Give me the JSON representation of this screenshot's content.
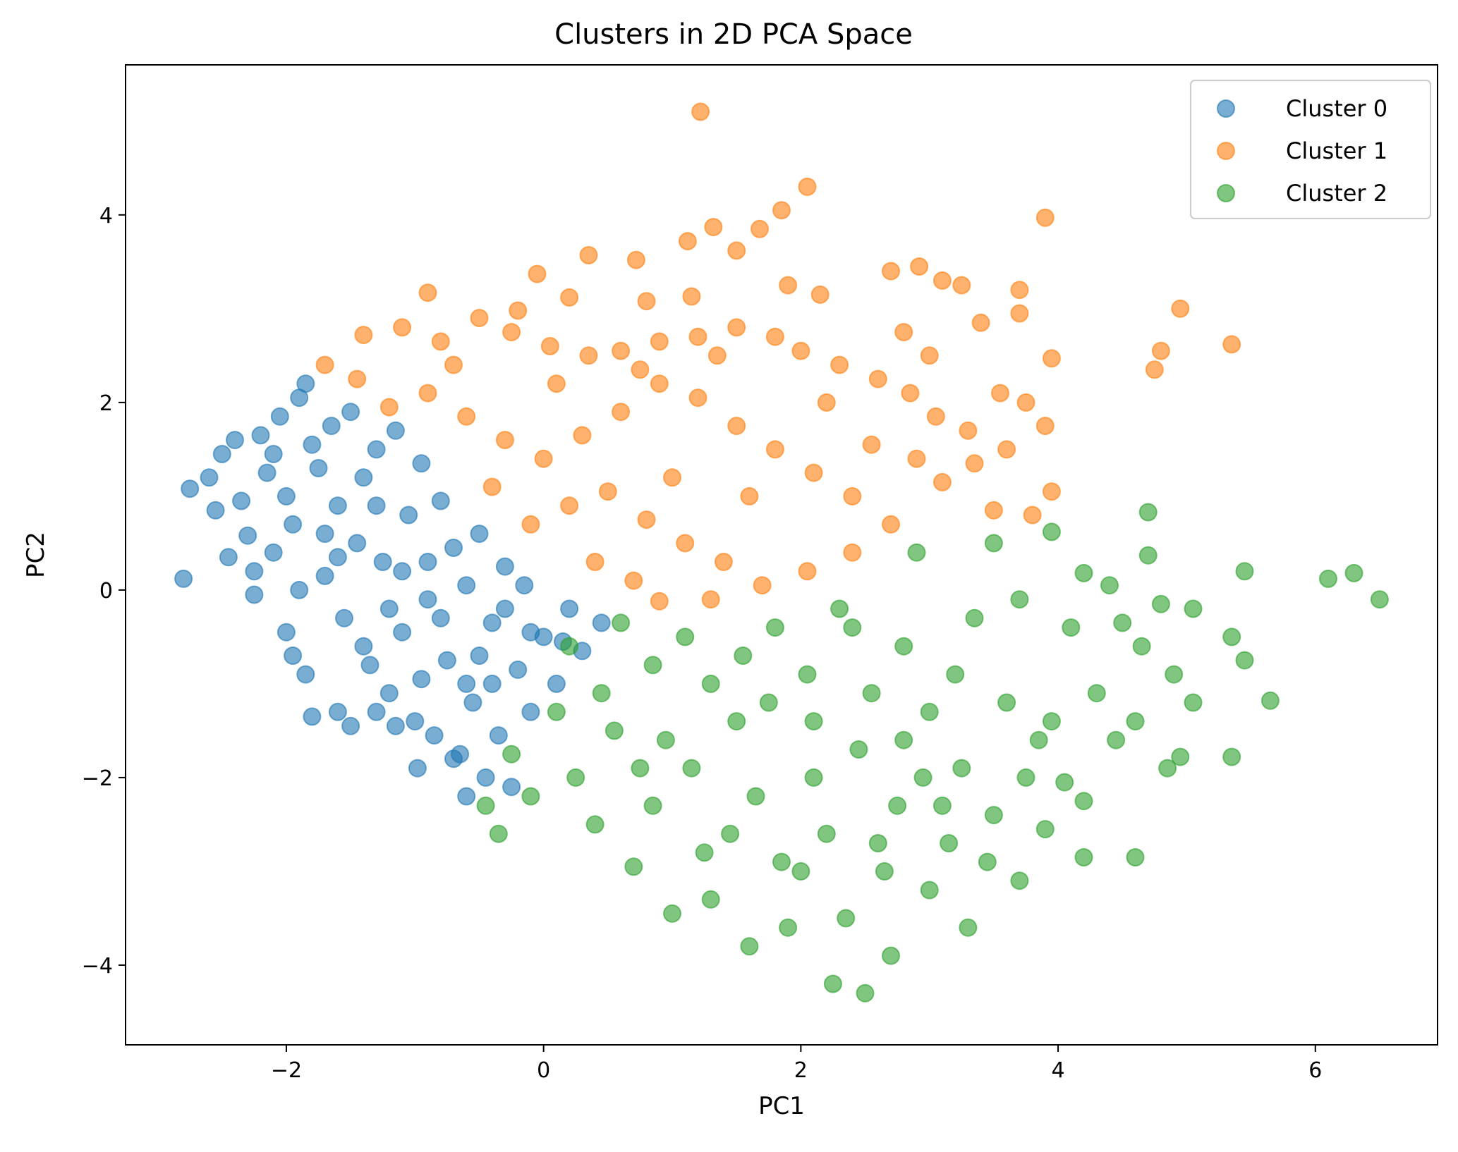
{
  "chart_data": {
    "type": "scatter",
    "title": "Clusters in 2D PCA Space",
    "xlabel": "PC1",
    "ylabel": "PC2",
    "xlim": [
      -3.25,
      6.95
    ],
    "ylim": [
      -4.85,
      5.6
    ],
    "xticks": [
      -2,
      0,
      2,
      4,
      6
    ],
    "yticks": [
      -4,
      -2,
      0,
      2,
      4
    ],
    "xtick_labels": [
      "−2",
      "0",
      "2",
      "4",
      "6"
    ],
    "ytick_labels": [
      "−4",
      "−2",
      "0",
      "2",
      "4"
    ],
    "grid": false,
    "legend_position": "top-right",
    "marker_alpha": 0.6,
    "series": [
      {
        "name": "Cluster 0",
        "color": "#1f77b4",
        "points": [
          [
            -2.8,
            0.12
          ],
          [
            -2.75,
            1.08
          ],
          [
            -2.6,
            1.2
          ],
          [
            -2.55,
            0.85
          ],
          [
            -2.5,
            1.45
          ],
          [
            -2.45,
            0.35
          ],
          [
            -2.4,
            1.6
          ],
          [
            -2.35,
            0.95
          ],
          [
            -2.3,
            0.58
          ],
          [
            -2.25,
            0.2
          ],
          [
            -2.2,
            1.65
          ],
          [
            -2.15,
            1.25
          ],
          [
            -2.1,
            0.4
          ],
          [
            -2.05,
            1.85
          ],
          [
            -2.0,
            1.0
          ],
          [
            -1.95,
            0.7
          ],
          [
            -1.9,
            2.05
          ],
          [
            -1.85,
            2.2
          ],
          [
            -1.8,
            1.55
          ],
          [
            -1.75,
            1.3
          ],
          [
            -1.7,
            0.15
          ],
          [
            -1.65,
            1.75
          ],
          [
            -1.6,
            0.9
          ],
          [
            -1.55,
            -0.3
          ],
          [
            -1.5,
            1.9
          ],
          [
            -1.45,
            0.5
          ],
          [
            -1.4,
            1.2
          ],
          [
            -1.35,
            -0.8
          ],
          [
            -1.3,
            1.5
          ],
          [
            -1.25,
            0.3
          ],
          [
            -1.2,
            -1.1
          ],
          [
            -1.15,
            1.7
          ],
          [
            -1.1,
            -0.45
          ],
          [
            -1.05,
            0.8
          ],
          [
            -1.0,
            -1.4
          ],
          [
            -0.95,
            1.35
          ],
          [
            -0.9,
            -0.1
          ],
          [
            -0.85,
            -1.55
          ],
          [
            -0.8,
            0.95
          ],
          [
            -0.75,
            -0.75
          ],
          [
            -0.7,
            0.45
          ],
          [
            -0.65,
            -1.75
          ],
          [
            -0.6,
            0.05
          ],
          [
            -0.55,
            -1.2
          ],
          [
            -0.5,
            0.6
          ],
          [
            -0.45,
            -2.0
          ],
          [
            -0.4,
            -0.35
          ],
          [
            -0.35,
            -1.55
          ],
          [
            -0.3,
            0.25
          ],
          [
            -0.25,
            -2.1
          ],
          [
            -0.2,
            -0.85
          ],
          [
            -0.15,
            0.05
          ],
          [
            -0.1,
            -1.3
          ],
          [
            0.0,
            -0.5
          ],
          [
            0.1,
            -1.0
          ],
          [
            0.2,
            -0.2
          ],
          [
            0.3,
            -0.65
          ],
          [
            0.45,
            -0.35
          ],
          [
            -1.85,
            -0.9
          ],
          [
            -1.8,
            -1.35
          ],
          [
            -1.6,
            -1.3
          ],
          [
            -1.5,
            -1.45
          ],
          [
            -1.3,
            -1.3
          ],
          [
            -1.15,
            -1.45
          ],
          [
            -0.98,
            -1.9
          ],
          [
            -0.7,
            -1.8
          ],
          [
            -0.6,
            -2.2
          ],
          [
            -2.25,
            -0.05
          ],
          [
            -2.0,
            -0.45
          ],
          [
            -1.95,
            -0.7
          ],
          [
            -1.9,
            0.0
          ],
          [
            -2.1,
            1.45
          ],
          [
            -1.7,
            0.6
          ],
          [
            -1.3,
            0.9
          ],
          [
            -0.9,
            0.3
          ],
          [
            -0.5,
            -0.7
          ],
          [
            -0.3,
            -0.2
          ],
          [
            -1.4,
            -0.6
          ],
          [
            -1.1,
            0.2
          ],
          [
            -0.8,
            -0.3
          ],
          [
            -0.6,
            -1.0
          ],
          [
            -1.6,
            0.35
          ],
          [
            -1.2,
            -0.2
          ],
          [
            -0.95,
            -0.95
          ],
          [
            -0.4,
            -1.0
          ],
          [
            -0.1,
            -0.45
          ],
          [
            0.15,
            -0.55
          ]
        ]
      },
      {
        "name": "Cluster 1",
        "color": "#ff7f0e",
        "points": [
          [
            1.22,
            5.1
          ],
          [
            2.05,
            4.3
          ],
          [
            1.85,
            4.05
          ],
          [
            1.32,
            3.87
          ],
          [
            1.68,
            3.85
          ],
          [
            1.12,
            3.72
          ],
          [
            1.5,
            3.62
          ],
          [
            0.35,
            3.57
          ],
          [
            0.72,
            3.52
          ],
          [
            2.7,
            3.4
          ],
          [
            -0.05,
            3.37
          ],
          [
            2.92,
            3.45
          ],
          [
            3.1,
            3.3
          ],
          [
            3.25,
            3.25
          ],
          [
            1.9,
            3.25
          ],
          [
            2.15,
            3.15
          ],
          [
            -0.9,
            3.17
          ],
          [
            0.2,
            3.12
          ],
          [
            3.9,
            3.97
          ],
          [
            0.8,
            3.08
          ],
          [
            1.15,
            3.13
          ],
          [
            -0.2,
            2.98
          ],
          [
            4.95,
            3.0
          ],
          [
            5.35,
            2.62
          ],
          [
            4.8,
            2.55
          ],
          [
            4.75,
            2.35
          ],
          [
            3.95,
            2.47
          ],
          [
            3.7,
            3.2
          ],
          [
            3.7,
            2.95
          ],
          [
            3.4,
            2.85
          ],
          [
            -1.7,
            2.4
          ],
          [
            -1.4,
            2.72
          ],
          [
            -1.1,
            2.8
          ],
          [
            -0.8,
            2.65
          ],
          [
            -0.5,
            2.9
          ],
          [
            -0.25,
            2.75
          ],
          [
            0.05,
            2.6
          ],
          [
            0.35,
            2.5
          ],
          [
            0.6,
            2.55
          ],
          [
            0.9,
            2.65
          ],
          [
            1.2,
            2.7
          ],
          [
            1.5,
            2.8
          ],
          [
            1.8,
            2.7
          ],
          [
            2.0,
            2.55
          ],
          [
            2.3,
            2.4
          ],
          [
            2.6,
            2.25
          ],
          [
            2.85,
            2.1
          ],
          [
            3.05,
            1.85
          ],
          [
            3.3,
            1.7
          ],
          [
            3.55,
            2.1
          ],
          [
            3.75,
            2.0
          ],
          [
            3.9,
            1.75
          ],
          [
            3.6,
            1.5
          ],
          [
            3.35,
            1.35
          ],
          [
            3.1,
            1.15
          ],
          [
            3.5,
            0.85
          ],
          [
            3.8,
            0.8
          ],
          [
            3.95,
            1.05
          ],
          [
            2.7,
            0.7
          ],
          [
            2.4,
            0.4
          ],
          [
            2.05,
            0.2
          ],
          [
            1.7,
            0.05
          ],
          [
            1.3,
            -0.1
          ],
          [
            0.9,
            -0.12
          ],
          [
            -1.2,
            1.95
          ],
          [
            -0.9,
            2.1
          ],
          [
            -0.6,
            1.85
          ],
          [
            -0.3,
            1.6
          ],
          [
            0.0,
            1.4
          ],
          [
            0.3,
            1.65
          ],
          [
            0.6,
            1.9
          ],
          [
            0.9,
            2.2
          ],
          [
            1.2,
            2.05
          ],
          [
            1.5,
            1.75
          ],
          [
            1.8,
            1.5
          ],
          [
            2.1,
            1.25
          ],
          [
            2.4,
            1.0
          ],
          [
            0.2,
            0.9
          ],
          [
            0.5,
            1.05
          ],
          [
            0.8,
            0.75
          ],
          [
            1.1,
            0.5
          ],
          [
            1.4,
            0.3
          ],
          [
            -0.4,
            1.1
          ],
          [
            -0.1,
            0.7
          ],
          [
            0.4,
            0.3
          ],
          [
            0.7,
            0.1
          ],
          [
            1.0,
            1.2
          ],
          [
            1.6,
            1.0
          ],
          [
            2.2,
            2.0
          ],
          [
            2.55,
            1.55
          ],
          [
            2.9,
            1.4
          ],
          [
            -1.45,
            2.25
          ],
          [
            -0.7,
            2.4
          ],
          [
            0.1,
            2.2
          ],
          [
            0.75,
            2.35
          ],
          [
            1.35,
            2.5
          ],
          [
            2.8,
            2.75
          ],
          [
            3.0,
            2.5
          ]
        ]
      },
      {
        "name": "Cluster 2",
        "color": "#2ca02c",
        "points": [
          [
            6.5,
            -0.1
          ],
          [
            6.3,
            0.18
          ],
          [
            6.1,
            0.12
          ],
          [
            5.65,
            -1.18
          ],
          [
            5.45,
            0.2
          ],
          [
            5.45,
            -0.75
          ],
          [
            5.35,
            -1.78
          ],
          [
            5.35,
            -0.5
          ],
          [
            5.05,
            -0.2
          ],
          [
            5.05,
            -1.2
          ],
          [
            4.95,
            -1.78
          ],
          [
            4.9,
            -0.9
          ],
          [
            4.85,
            -1.9
          ],
          [
            4.8,
            -0.15
          ],
          [
            4.7,
            0.83
          ],
          [
            4.7,
            0.37
          ],
          [
            4.65,
            -0.6
          ],
          [
            4.6,
            -1.4
          ],
          [
            4.6,
            -2.85
          ],
          [
            4.5,
            -0.35
          ],
          [
            4.45,
            -1.6
          ],
          [
            4.4,
            0.05
          ],
          [
            4.3,
            -1.1
          ],
          [
            4.2,
            0.18
          ],
          [
            4.2,
            -2.25
          ],
          [
            4.2,
            -2.85
          ],
          [
            4.1,
            -0.4
          ],
          [
            4.05,
            -2.05
          ],
          [
            3.95,
            0.62
          ],
          [
            3.95,
            -1.4
          ],
          [
            3.9,
            -2.55
          ],
          [
            3.7,
            -0.1
          ],
          [
            3.6,
            -1.2
          ],
          [
            3.5,
            0.5
          ],
          [
            3.45,
            -2.9
          ],
          [
            3.3,
            -3.6
          ],
          [
            3.2,
            -0.9
          ],
          [
            3.1,
            -2.3
          ],
          [
            3.0,
            -3.2
          ],
          [
            2.9,
            0.4
          ],
          [
            2.8,
            -1.6
          ],
          [
            2.7,
            -3.9
          ],
          [
            2.6,
            -2.7
          ],
          [
            2.5,
            -4.3
          ],
          [
            2.4,
            -0.4
          ],
          [
            2.35,
            -3.5
          ],
          [
            2.25,
            -4.2
          ],
          [
            2.1,
            -2.0
          ],
          [
            2.0,
            -3.0
          ],
          [
            1.9,
            -3.6
          ],
          [
            1.75,
            -1.2
          ],
          [
            1.6,
            -3.8
          ],
          [
            1.45,
            -2.6
          ],
          [
            1.3,
            -3.3
          ],
          [
            1.15,
            -1.9
          ],
          [
            1.0,
            -3.45
          ],
          [
            0.85,
            -2.3
          ],
          [
            0.7,
            -2.95
          ],
          [
            0.55,
            -1.5
          ],
          [
            0.4,
            -2.5
          ],
          [
            0.25,
            -2.0
          ],
          [
            0.1,
            -1.3
          ],
          [
            -0.1,
            -2.2
          ],
          [
            -0.25,
            -1.75
          ],
          [
            -0.35,
            -2.6
          ],
          [
            -0.45,
            -2.3
          ],
          [
            0.6,
            -0.35
          ],
          [
            0.85,
            -0.8
          ],
          [
            1.1,
            -0.5
          ],
          [
            1.3,
            -1.0
          ],
          [
            1.55,
            -0.7
          ],
          [
            1.8,
            -0.4
          ],
          [
            2.05,
            -0.9
          ],
          [
            2.3,
            -0.2
          ],
          [
            2.55,
            -1.1
          ],
          [
            2.8,
            -0.6
          ],
          [
            3.0,
            -1.3
          ],
          [
            3.25,
            -1.9
          ],
          [
            3.5,
            -2.4
          ],
          [
            3.7,
            -3.1
          ],
          [
            3.85,
            -1.6
          ],
          [
            2.95,
            -2.0
          ],
          [
            2.65,
            -3.0
          ],
          [
            2.2,
            -2.6
          ],
          [
            1.65,
            -2.2
          ],
          [
            1.25,
            -2.8
          ],
          [
            0.95,
            -1.6
          ],
          [
            0.45,
            -1.1
          ],
          [
            0.2,
            -0.6
          ],
          [
            0.75,
            -1.9
          ],
          [
            1.5,
            -1.4
          ],
          [
            2.45,
            -1.7
          ],
          [
            3.35,
            -0.3
          ],
          [
            3.75,
            -2.0
          ],
          [
            2.1,
            -1.4
          ],
          [
            1.85,
            -2.9
          ],
          [
            2.75,
            -2.3
          ],
          [
            3.15,
            -2.7
          ]
        ]
      }
    ]
  }
}
